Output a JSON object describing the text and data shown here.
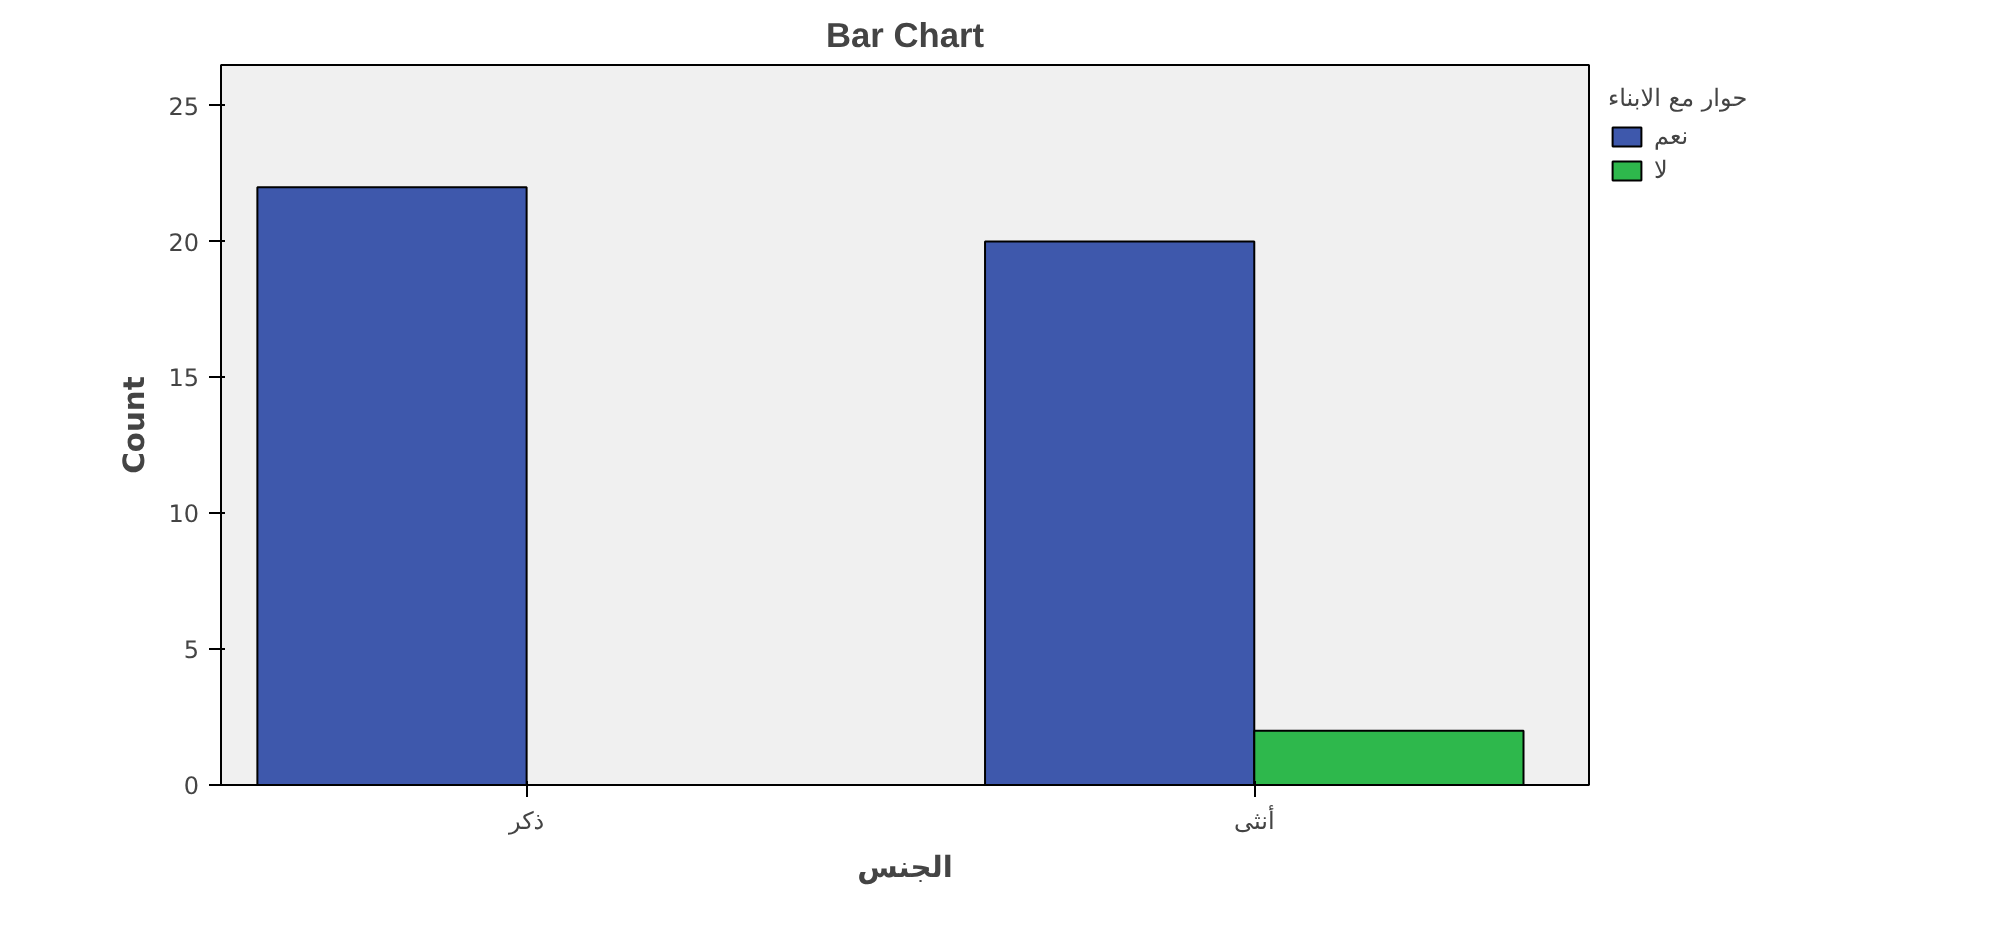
{
  "chart_data": {
    "type": "bar",
    "title": "Bar Chart",
    "xlabel": "الجنس",
    "ylabel": "Count",
    "legend_title": "حوار مع الابناء",
    "categories": [
      "ذكر",
      "أنثى"
    ],
    "series": [
      {
        "name": "نعم",
        "color": "#3e58ac",
        "values": [
          22,
          20
        ]
      },
      {
        "name": "لا",
        "color": "#2eb84c",
        "values": [
          null,
          2
        ]
      }
    ],
    "ylim": [
      0,
      26.5
    ],
    "yticks": [
      0,
      5,
      10,
      15,
      20,
      25
    ],
    "grid": false,
    "legend": "top right"
  }
}
